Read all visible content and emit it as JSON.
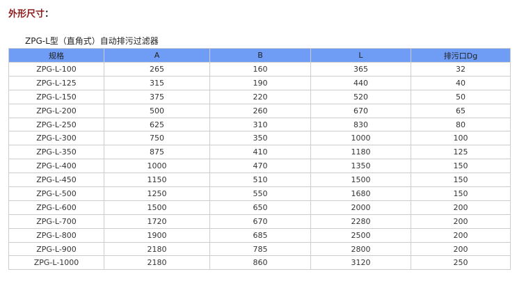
{
  "title": "外形尺寸",
  "title_colon": "：",
  "caption": "ZPG-L型（直角式）自动排污过滤器",
  "headers": [
    "规格",
    "A",
    "B",
    "L",
    "排污口Dg"
  ],
  "rows": [
    [
      "ZPG-L-100",
      "265",
      "160",
      "365",
      "32"
    ],
    [
      "ZPG-L-125",
      "315",
      "190",
      "440",
      "40"
    ],
    [
      "ZPG-L-150",
      "375",
      "220",
      "520",
      "50"
    ],
    [
      "ZPG-L-200",
      "500",
      "260",
      "670",
      "65"
    ],
    [
      "ZPG-L-250",
      "625",
      "310",
      "830",
      "80"
    ],
    [
      "ZPG-L-300",
      "750",
      "350",
      "1000",
      "100"
    ],
    [
      "ZPG-L-350",
      "875",
      "410",
      "1180",
      "125"
    ],
    [
      "ZPG-L-400",
      "1000",
      "470",
      "1350",
      "150"
    ],
    [
      "ZPG-L-450",
      "1150",
      "510",
      "1500",
      "150"
    ],
    [
      "ZPG-L-500",
      "1250",
      "550",
      "1680",
      "150"
    ],
    [
      "ZPG-L-600",
      "1500",
      "650",
      "2000",
      "200"
    ],
    [
      "ZPG-L-700",
      "1720",
      "670",
      "2280",
      "200"
    ],
    [
      "ZPG-L-800",
      "1900",
      "685",
      "2500",
      "200"
    ],
    [
      "ZPG-L-900",
      "2180",
      "785",
      "2800",
      "200"
    ],
    [
      "ZPG-L-1000",
      "2180",
      "860",
      "3120",
      "250"
    ]
  ]
}
